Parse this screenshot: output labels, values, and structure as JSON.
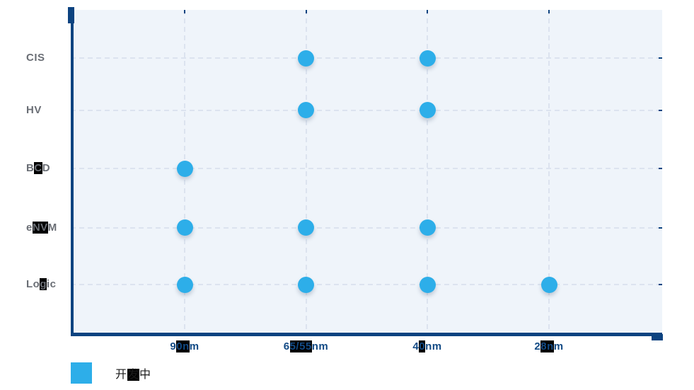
{
  "chart_data": {
    "type": "scatter",
    "title": "",
    "x_categories": [
      "90nm",
      "65/55nm",
      "40nm",
      "28nm"
    ],
    "y_categories": [
      "CIS",
      "HV",
      "BCD",
      "eNVM",
      "Logic"
    ],
    "points": [
      {
        "x": "65/55nm",
        "y": "CIS"
      },
      {
        "x": "40nm",
        "y": "CIS"
      },
      {
        "x": "65/55nm",
        "y": "HV"
      },
      {
        "x": "40nm",
        "y": "HV"
      },
      {
        "x": "90nm",
        "y": "BCD"
      },
      {
        "x": "90nm",
        "y": "eNVM"
      },
      {
        "x": "65/55nm",
        "y": "eNVM"
      },
      {
        "x": "40nm",
        "y": "eNVM"
      },
      {
        "x": "90nm",
        "y": "Logic"
      },
      {
        "x": "65/55nm",
        "y": "Logic"
      },
      {
        "x": "40nm",
        "y": "Logic"
      },
      {
        "x": "28nm",
        "y": "Logic"
      }
    ],
    "legend": [
      {
        "label": "开发中",
        "color": "#2DAEE9"
      }
    ],
    "legend_position": "bottom-left",
    "grid": true,
    "grid_style": "dashed"
  },
  "colors": {
    "marker": "#2DAEE9",
    "axis": "#0C4380",
    "grid_line": "#DCE3EF",
    "plot_background": "#EFF4FA",
    "x_label": "#124A85",
    "y_label": "#6A6E75",
    "legend_text": "#1A1A1A",
    "glyph_highlight_bg": "#000000"
  },
  "glyph_highlights": {
    "BCD": "C",
    "eNVM": "NV",
    "Logic": "g",
    "90nm": "0n",
    "65/55nm": "5/55",
    "40nm": "0",
    "28nm": "8n",
    "开发中": "发"
  }
}
